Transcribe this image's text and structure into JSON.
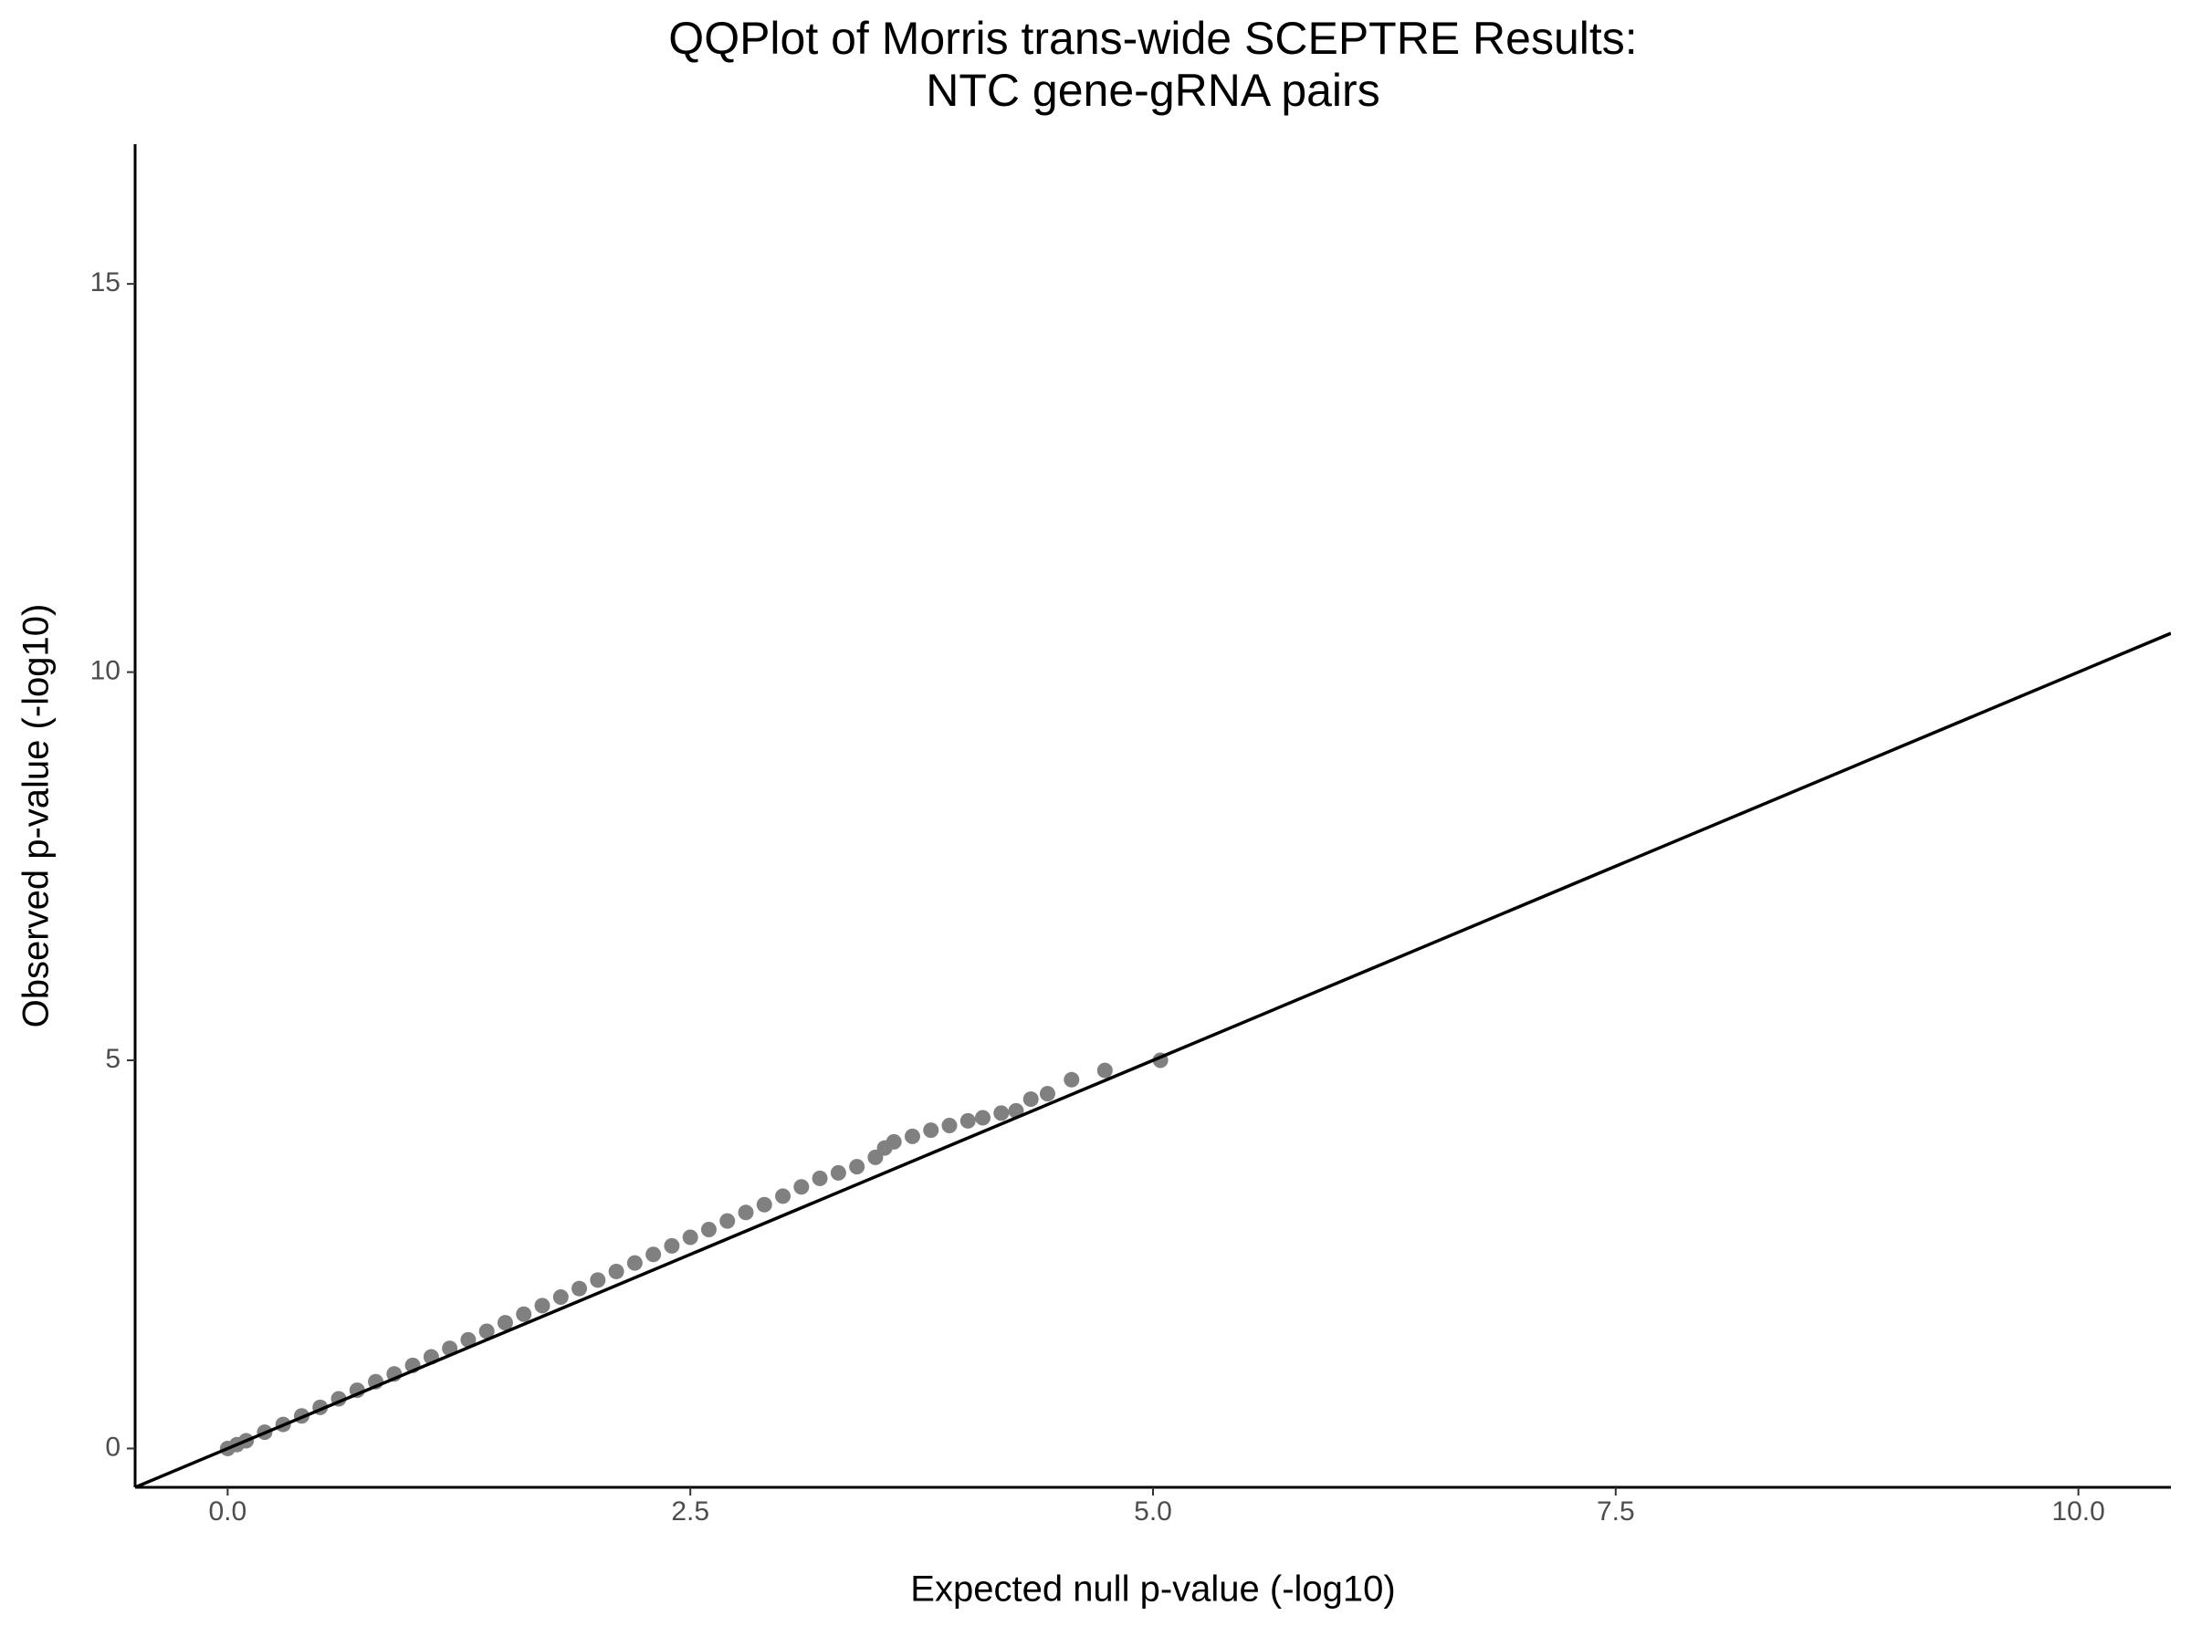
{
  "chart_data": {
    "type": "scatter",
    "title": [
      "QQPlot of Morris trans-wide SCEPTRE Results:",
      "NTC gene-gRNA pairs"
    ],
    "x_label": "Expected null p-value (-log10)",
    "y_label": "Observed p-value (-log10)",
    "x": [
      0,
      0.05,
      0.1,
      0.2,
      0.3,
      0.4,
      0.5,
      0.6,
      0.7,
      0.8,
      0.9,
      1.0,
      1.1,
      1.2,
      1.3,
      1.4,
      1.5,
      1.6,
      1.7,
      1.8,
      1.9,
      2.0,
      2.1,
      2.2,
      2.3,
      2.4,
      2.5,
      2.6,
      2.7,
      2.8,
      2.9,
      3.0,
      3.1,
      3.2,
      3.3,
      3.4,
      3.5,
      3.55,
      3.6,
      3.7,
      3.8,
      3.9,
      4.0,
      4.08,
      4.18,
      4.26,
      4.34,
      4.43,
      4.56,
      4.74,
      5.04
    ],
    "series": [
      {
        "color": "#808080",
        "values": [
          0,
          0.05,
          0.1,
          0.21,
          0.31,
          0.42,
          0.53,
          0.64,
          0.75,
          0.86,
          0.96,
          1.07,
          1.18,
          1.29,
          1.4,
          1.51,
          1.62,
          1.73,
          1.84,
          1.95,
          2.06,
          2.17,
          2.28,
          2.39,
          2.5,
          2.61,
          2.72,
          2.82,
          2.93,
          3.04,
          3.14,
          3.25,
          3.37,
          3.48,
          3.55,
          3.63,
          3.75,
          3.87,
          3.95,
          4.02,
          4.1,
          4.16,
          4.22,
          4.26,
          4.32,
          4.35,
          4.5,
          4.57,
          4.75,
          4.87,
          5.0
        ]
      }
    ],
    "reference_line": {
      "slope": 1,
      "intercept": 0,
      "color": "#000000"
    },
    "xlim": [
      -0.5,
      10.5
    ],
    "ylim": [
      -0.5,
      16.8
    ],
    "xticks": [
      {
        "value": 0,
        "label": "0.0"
      },
      2.5,
      {
        "value": 5,
        "label": "5.0"
      },
      7.5,
      {
        "value": 10,
        "label": "10.0"
      }
    ],
    "yticks": [
      0,
      5,
      10,
      15
    ],
    "grid": false
  }
}
